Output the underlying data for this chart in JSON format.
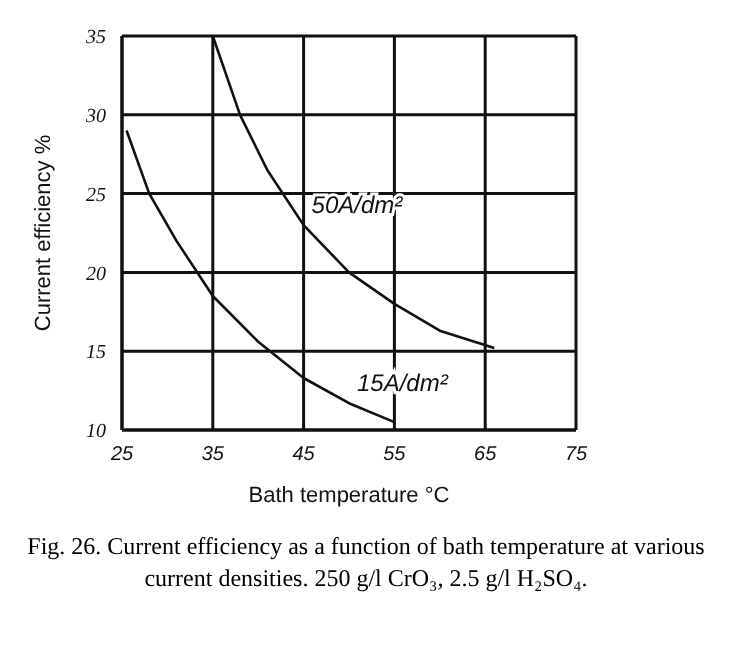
{
  "chart_data": {
    "type": "line",
    "xlabel": "Bath temperature °C",
    "ylabel": "Current efficiency %",
    "xlim": [
      25,
      75
    ],
    "xticks": [
      25,
      35,
      45,
      55,
      65,
      75
    ],
    "ylim": [
      10,
      35
    ],
    "yticks": [
      10,
      15,
      20,
      25,
      30,
      35
    ],
    "grid": true,
    "legend": false,
    "marker": "none",
    "line_style": "solid",
    "series": [
      {
        "name": "50A/dm²",
        "color": "#111111",
        "x": [
          35,
          38,
          41,
          45,
          50,
          55,
          60,
          66
        ],
        "values": [
          35,
          30,
          26.5,
          23,
          20,
          18,
          16.3,
          15.2
        ]
      },
      {
        "name": "15A/dm²",
        "color": "#111111",
        "x": [
          25.5,
          28,
          31,
          35,
          40,
          45,
          50,
          55
        ],
        "values": [
          29,
          25,
          22,
          18.5,
          15.6,
          13.3,
          11.7,
          10.5
        ]
      }
    ],
    "annotations": [
      "Fig. 26. Current efficiency as a function of bath temperature at various current densities. 250 g/l CrO₃, 2.5 g/l H₂SO₄."
    ]
  }
}
